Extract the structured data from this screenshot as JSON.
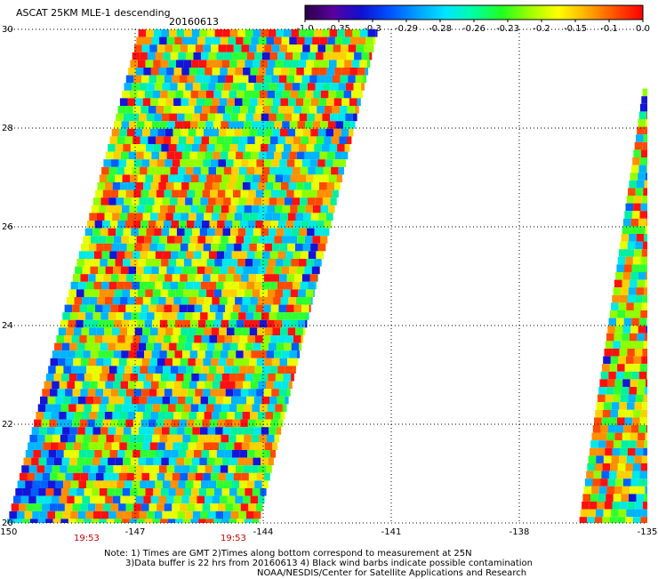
{
  "header": {
    "title": "ASCAT 25KM MLE-1 descending",
    "date": "20160613"
  },
  "colorbar": {
    "tick_labels": [
      "-1.0",
      "-0.35",
      "-0.3",
      "-0.29",
      "-0.28",
      "-0.26",
      "-0.23",
      "-0.2",
      "-0.15",
      "-0.1",
      "0.0"
    ],
    "colors": [
      "#2a0045",
      "#5a00a0",
      "#1010d0",
      "#0050ff",
      "#00a0ff",
      "#00e6ff",
      "#00ffa0",
      "#20ff20",
      "#a0ff00",
      "#ffff00",
      "#ffb000",
      "#ff5000",
      "#ff0000"
    ]
  },
  "map": {
    "lon_range": [
      -150,
      -135
    ],
    "lat_range": [
      20,
      30
    ],
    "x_tick_labels": [
      "-150",
      "-147",
      "-144",
      "-141",
      "-138",
      "-135"
    ],
    "y_tick_labels": [
      "20",
      "22",
      "24",
      "26",
      "28",
      "30"
    ],
    "grid": "dotted",
    "pass_times": [
      "19:53",
      "19:53"
    ],
    "swaths": [
      {
        "lat_bottom": 20,
        "lat_top": 30,
        "lon_left_bottom": -150,
        "lon_right_bottom": -144.1,
        "lon_left_top": -146.9,
        "lon_right_top": -141.3
      },
      {
        "lat_bottom": 20,
        "lat_top": 28.8,
        "lon_left_bottom": -136.6,
        "lon_right_bottom": -135,
        "lon_left_top": -135.1,
        "lon_right_top": -135
      }
    ]
  },
  "notes": {
    "line1": "Note: 1) Times are GMT 2)Times along bottom correspond to measurement at 25N",
    "line2": "3)Data buffer is 22 hrs from 20160613 4) Black wind barbs indicate possible contamination",
    "line3": "NOAA/NESDIS/Center for Satellite Applications and Research"
  }
}
